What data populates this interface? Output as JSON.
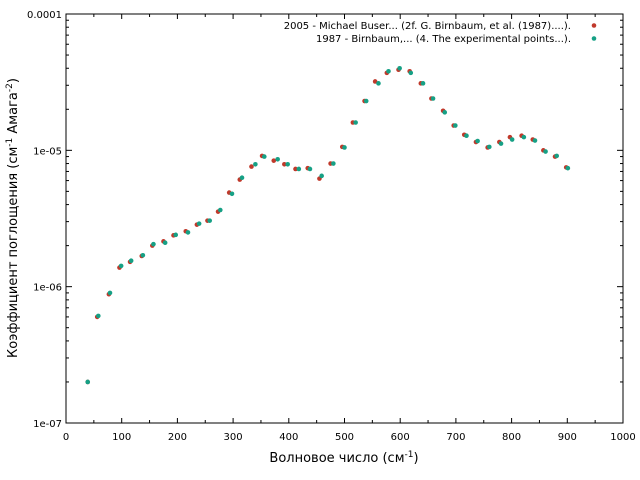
{
  "chart_data": {
    "type": "scatter",
    "xlabel": {
      "main": "Волновое число (см",
      "sup": "-1",
      "tail": ")"
    },
    "ylabel": {
      "main": "Коэффициент поглощения (см",
      "sup1": "-1",
      "mid": " Амага",
      "sup2": "-2",
      "tail": ")"
    },
    "xlim": [
      0,
      1000
    ],
    "ylim": [
      1e-07,
      0.0001
    ],
    "yscale": "log",
    "grid": false,
    "legend_position": "top-right",
    "x_ticks": [
      0,
      100,
      200,
      300,
      400,
      500,
      600,
      700,
      800,
      900,
      1000
    ],
    "y_ticks": [
      {
        "value": 1e-07,
        "label": "1e-07"
      },
      {
        "value": 1e-06,
        "label": "1e-06"
      },
      {
        "value": 1e-05,
        "label": "1e-05"
      },
      {
        "value": 0.0001,
        "label": "0.0001"
      }
    ],
    "series": [
      {
        "name": "2005 - Michael Buser... (2f. G. Birnbaum, et al. (1987)....).",
        "color": "#c0392b",
        "points": [
          [
            39,
            2e-07
          ],
          [
            56,
            6e-07
          ],
          [
            77,
            8.8e-07
          ],
          [
            96,
            1.38e-06
          ],
          [
            115,
            1.52e-06
          ],
          [
            136,
            1.68e-06
          ],
          [
            155,
            2e-06
          ],
          [
            175,
            2.15e-06
          ],
          [
            193,
            2.38e-06
          ],
          [
            215,
            2.55e-06
          ],
          [
            235,
            2.85e-06
          ],
          [
            254,
            3.05e-06
          ],
          [
            273,
            3.55e-06
          ],
          [
            293,
            4.9e-06
          ],
          [
            312,
            6.1e-06
          ],
          [
            333,
            7.6e-06
          ],
          [
            352,
            9.1e-06
          ],
          [
            373,
            8.4e-06
          ],
          [
            392,
            7.9e-06
          ],
          [
            412,
            7.3e-06
          ],
          [
            434,
            7.4e-06
          ],
          [
            455,
            6.2e-06
          ],
          [
            475,
            8e-06
          ],
          [
            496,
            1.06e-05
          ],
          [
            515,
            1.6e-05
          ],
          [
            536,
            2.3e-05
          ],
          [
            555,
            3.2e-05
          ],
          [
            576,
            3.7e-05
          ],
          [
            597,
            3.9e-05
          ],
          [
            617,
            3.8e-05
          ],
          [
            637,
            3.1e-05
          ],
          [
            656,
            2.4e-05
          ],
          [
            677,
            1.95e-05
          ],
          [
            696,
            1.52e-05
          ],
          [
            715,
            1.3e-05
          ],
          [
            736,
            1.15e-05
          ],
          [
            757,
            1.05e-05
          ],
          [
            778,
            1.15e-05
          ],
          [
            797,
            1.25e-05
          ],
          [
            818,
            1.28e-05
          ],
          [
            838,
            1.2e-05
          ],
          [
            857,
            1e-05
          ],
          [
            878,
            9e-06
          ],
          [
            898,
            7.5e-06
          ]
        ]
      },
      {
        "name": "1987 - Birnbaum,... (4. The experimental points...).",
        "color": "#16a085",
        "points": [
          [
            39,
            2e-07
          ],
          [
            58,
            6.1e-07
          ],
          [
            79,
            9e-07
          ],
          [
            99,
            1.42e-06
          ],
          [
            117,
            1.55e-06
          ],
          [
            138,
            1.7e-06
          ],
          [
            157,
            2.05e-06
          ],
          [
            178,
            2.1e-06
          ],
          [
            197,
            2.4e-06
          ],
          [
            219,
            2.5e-06
          ],
          [
            239,
            2.9e-06
          ],
          [
            258,
            3.05e-06
          ],
          [
            277,
            3.65e-06
          ],
          [
            298,
            4.8e-06
          ],
          [
            316,
            6.3e-06
          ],
          [
            340,
            7.9e-06
          ],
          [
            356,
            9e-06
          ],
          [
            380,
            8.6e-06
          ],
          [
            398,
            7.9e-06
          ],
          [
            418,
            7.3e-06
          ],
          [
            438,
            7.3e-06
          ],
          [
            459,
            6.5e-06
          ],
          [
            480,
            8e-06
          ],
          [
            500,
            1.05e-05
          ],
          [
            520,
            1.6e-05
          ],
          [
            539,
            2.3e-05
          ],
          [
            561,
            3.1e-05
          ],
          [
            579,
            3.8e-05
          ],
          [
            599,
            4e-05
          ],
          [
            619,
            3.7e-05
          ],
          [
            641,
            3.1e-05
          ],
          [
            659,
            2.4e-05
          ],
          [
            680,
            1.9e-05
          ],
          [
            699,
            1.52e-05
          ],
          [
            719,
            1.28e-05
          ],
          [
            739,
            1.17e-05
          ],
          [
            760,
            1.06e-05
          ],
          [
            781,
            1.12e-05
          ],
          [
            801,
            1.2e-05
          ],
          [
            822,
            1.25e-05
          ],
          [
            842,
            1.18e-05
          ],
          [
            861,
            9.8e-06
          ],
          [
            881,
            9.1e-06
          ],
          [
            901,
            7.4e-06
          ]
        ]
      }
    ]
  }
}
